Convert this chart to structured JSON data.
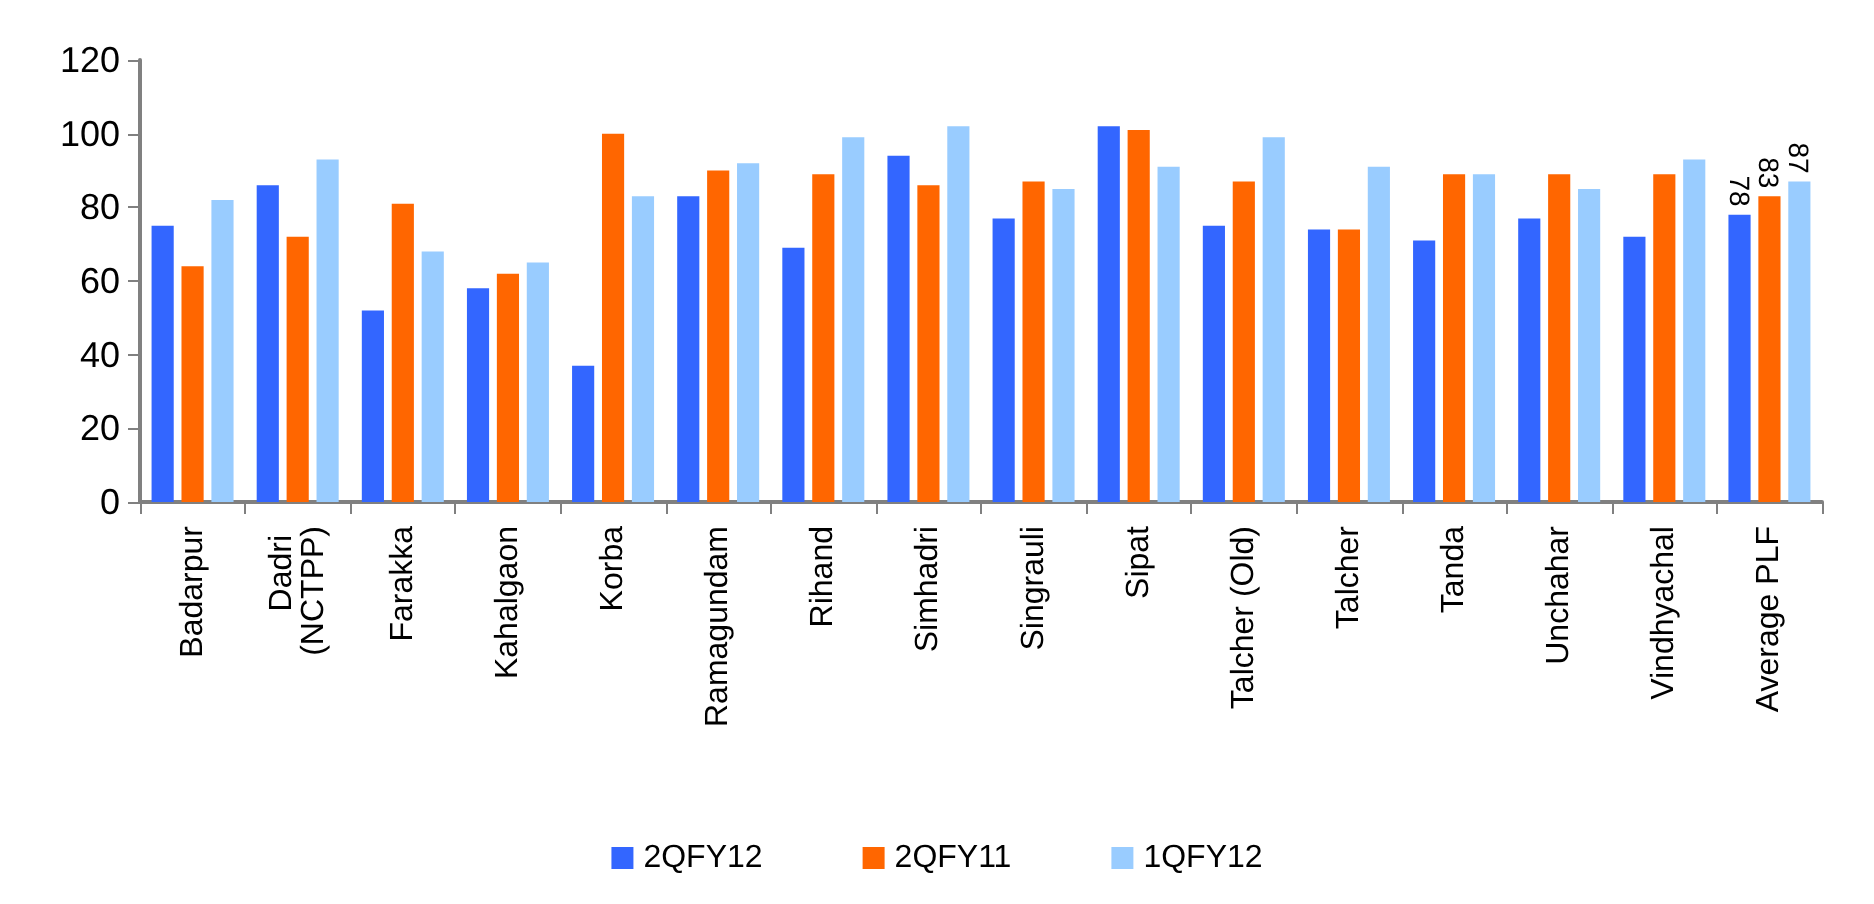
{
  "chart_data": {
    "type": "bar",
    "categories": [
      "Badarpur",
      "Dadri (NCTPP)",
      "Farakka",
      "Kahalgaon",
      "Korba",
      "Ramagundam",
      "Rihand",
      "Simhadri",
      "Singrauli",
      "Sipat",
      "Talcher (Old)",
      "Talcher",
      "Tanda",
      "Unchahar",
      "Vindhyachal",
      "Average PLF"
    ],
    "series": [
      {
        "name": "2QFY12",
        "color": "#3366ff",
        "values": [
          75,
          86,
          52,
          58,
          37,
          83,
          69,
          94,
          77,
          102,
          75,
          74,
          71,
          77,
          72,
          78
        ],
        "value_labels": [
          null,
          null,
          null,
          null,
          null,
          null,
          null,
          null,
          null,
          null,
          null,
          null,
          null,
          null,
          null,
          "78"
        ]
      },
      {
        "name": "2QFY11",
        "color": "#ff6600",
        "values": [
          64,
          72,
          81,
          62,
          100,
          90,
          89,
          86,
          87,
          101,
          87,
          74,
          89,
          89,
          89,
          83
        ],
        "value_labels": [
          null,
          null,
          null,
          null,
          null,
          null,
          null,
          null,
          null,
          null,
          null,
          null,
          null,
          null,
          null,
          "83"
        ]
      },
      {
        "name": "1QFY12",
        "color": "#99ccff",
        "values": [
          82,
          93,
          68,
          65,
          83,
          92,
          99,
          102,
          85,
          91,
          99,
          91,
          89,
          85,
          93,
          87
        ],
        "value_labels": [
          null,
          null,
          null,
          null,
          null,
          null,
          null,
          null,
          null,
          null,
          null,
          null,
          null,
          null,
          null,
          "87"
        ]
      }
    ],
    "ylim": [
      0,
      120
    ],
    "yticks": [
      0,
      20,
      40,
      60,
      80,
      100,
      120
    ],
    "grid": false,
    "legend": "bottom"
  }
}
